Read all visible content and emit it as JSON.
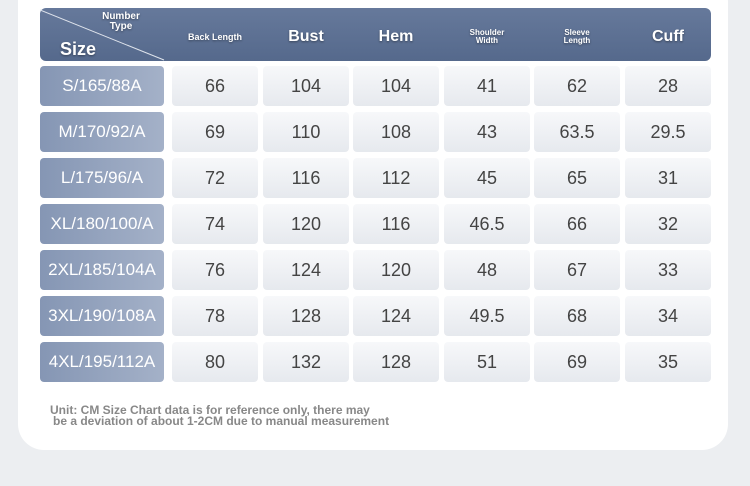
{
  "table": {
    "corner": {
      "top": "Number Type",
      "bottom": "Size"
    },
    "columns": [
      "Back Length",
      "Bust",
      "Hem",
      "Shoulder Width",
      "Sleeve Length",
      "Cuff"
    ],
    "rows": [
      [
        "S/165/88A",
        "66",
        "104",
        "104",
        "41",
        "62",
        "28"
      ],
      [
        "M/170/92/A",
        "69",
        "110",
        "108",
        "43",
        "63.5",
        "29.5"
      ],
      [
        "L/175/96/A",
        "72",
        "116",
        "112",
        "45",
        "65",
        "31"
      ],
      [
        "XL/180/100/A",
        "74",
        "120",
        "116",
        "46.5",
        "66",
        "32"
      ],
      [
        "2XL/185/104A",
        "76",
        "124",
        "120",
        "48",
        "67",
        "33"
      ],
      [
        "3XL/190/108A",
        "78",
        "128",
        "124",
        "49.5",
        "68",
        "34"
      ],
      [
        "4XL/195/112A",
        "80",
        "132",
        "128",
        "51",
        "69",
        "35"
      ]
    ]
  },
  "note": {
    "lines": [
      "Unit: CM Size Chart data is for reference only, there may",
      "be a deviation of about 1-2CM due to manual measurement"
    ]
  }
}
